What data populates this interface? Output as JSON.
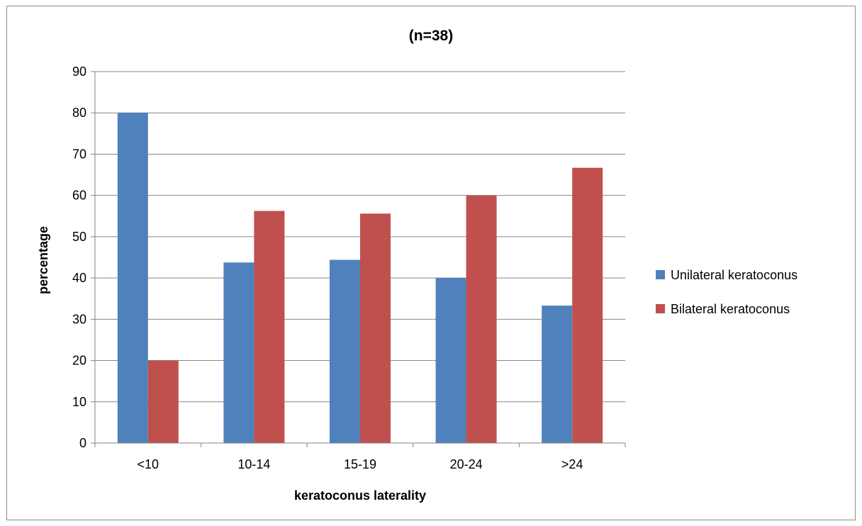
{
  "chart_data": {
    "type": "bar",
    "title": "(n=38)",
    "xlabel": "keratoconus laterality",
    "ylabel": "percentage",
    "categories": [
      "<10",
      "10-14",
      "15-19",
      "20-24",
      ">24"
    ],
    "series": [
      {
        "name": "Unilateral keratoconus",
        "color": "#4f81bd",
        "values": [
          80,
          43.75,
          44.4,
          40,
          33.3
        ]
      },
      {
        "name": "Bilateral keratoconus",
        "color": "#c0504d",
        "values": [
          20,
          56.25,
          55.6,
          60,
          66.7
        ]
      }
    ],
    "ylim": [
      0,
      90
    ],
    "yticks": [
      0,
      10,
      20,
      30,
      40,
      50,
      60,
      70,
      80,
      90
    ],
    "grid": true,
    "legend_position": "right"
  }
}
